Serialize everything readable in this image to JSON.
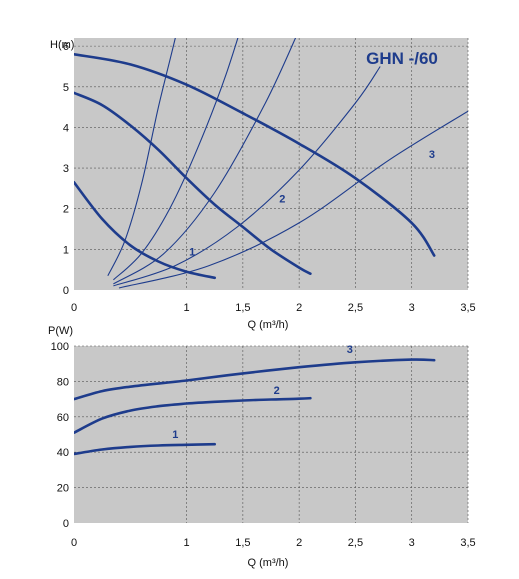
{
  "chart_data": [
    {
      "type": "line",
      "title": "GHN -/60",
      "ylabel": "H(m)",
      "xlabel": "Q (m³/h)",
      "xlim": [
        0,
        3.5
      ],
      "ylim": [
        0,
        6.2
      ],
      "xticks": [
        "0",
        "1",
        "1,5",
        "2",
        "2,5",
        "3",
        "3,5"
      ],
      "xtick_values": [
        0,
        1,
        1.5,
        2,
        2.5,
        3,
        3.5
      ],
      "yticks": [
        "0",
        "1",
        "2",
        "3",
        "4",
        "5",
        "6"
      ],
      "ytick_values": [
        0,
        1,
        2,
        3,
        4,
        5,
        6
      ],
      "grid": true,
      "series": [
        {
          "name": "1",
          "x": [
            0,
            0.25,
            0.5,
            0.75,
            1.0,
            1.25
          ],
          "y": [
            2.65,
            1.75,
            1.1,
            0.7,
            0.45,
            0.3
          ]
        },
        {
          "name": "2",
          "x": [
            0,
            0.25,
            0.5,
            0.75,
            1.0,
            1.25,
            1.5,
            1.75,
            2.0,
            2.1
          ],
          "y": [
            4.85,
            4.55,
            4.05,
            3.45,
            2.75,
            2.1,
            1.55,
            1.0,
            0.55,
            0.4
          ]
        },
        {
          "name": "3",
          "x": [
            0,
            0.5,
            1.0,
            1.5,
            2.0,
            2.5,
            3.0,
            3.2
          ],
          "y": [
            5.8,
            5.55,
            5.05,
            4.35,
            3.6,
            2.75,
            1.65,
            0.85
          ]
        }
      ],
      "system_curves": [
        {
          "x": [
            0.3,
            0.45,
            0.6,
            0.75,
            0.9,
            0.98
          ],
          "y": [
            0.35,
            1.2,
            2.6,
            4.5,
            6.2,
            7.2
          ]
        },
        {
          "x": [
            0.35,
            0.6,
            0.85,
            1.1,
            1.35,
            1.6
          ],
          "y": [
            0.25,
            0.9,
            2.0,
            3.5,
            5.3,
            7.5
          ]
        },
        {
          "x": [
            0.35,
            0.8,
            1.25,
            1.7,
            2.0
          ],
          "y": [
            0.15,
            0.9,
            2.4,
            4.6,
            6.4
          ]
        },
        {
          "x": [
            0.35,
            0.9,
            1.45,
            2.0,
            2.5,
            2.72
          ],
          "y": [
            0.1,
            0.6,
            1.55,
            2.95,
            4.6,
            5.5
          ]
        },
        {
          "x": [
            0.4,
            1.2,
            2.0,
            2.8,
            3.5
          ],
          "y": [
            0.05,
            0.6,
            1.65,
            3.2,
            4.4
          ]
        }
      ]
    },
    {
      "type": "line",
      "ylabel": "P(W)",
      "xlabel": "Q (m³/h)",
      "xlim": [
        0,
        3.5
      ],
      "ylim": [
        0,
        100
      ],
      "xticks": [
        "0",
        "1",
        "1,5",
        "2",
        "2,5",
        "3",
        "3,5"
      ],
      "xtick_values": [
        0,
        1,
        1.5,
        2,
        2.5,
        3,
        3.5
      ],
      "yticks": [
        "0",
        "20",
        "40",
        "60",
        "80",
        "100"
      ],
      "ytick_values": [
        0,
        20,
        40,
        60,
        80,
        100
      ],
      "grid": true,
      "series": [
        {
          "name": "1",
          "x": [
            0,
            0.25,
            0.5,
            0.75,
            1.0,
            1.25
          ],
          "y": [
            39,
            41.5,
            43,
            43.8,
            44.2,
            44.5
          ]
        },
        {
          "name": "2",
          "x": [
            0,
            0.25,
            0.5,
            0.75,
            1.0,
            1.25,
            1.5,
            1.75,
            2.0,
            2.1
          ],
          "y": [
            51,
            59,
            63.5,
            66,
            67.5,
            68.5,
            69.2,
            69.8,
            70.2,
            70.5
          ]
        },
        {
          "name": "3",
          "x": [
            0,
            0.25,
            0.5,
            1.0,
            1.5,
            2.0,
            2.5,
            3.0,
            3.2
          ],
          "y": [
            70,
            74.5,
            77,
            80.5,
            84.5,
            88,
            90.8,
            92.3,
            92
          ]
        }
      ]
    }
  ]
}
